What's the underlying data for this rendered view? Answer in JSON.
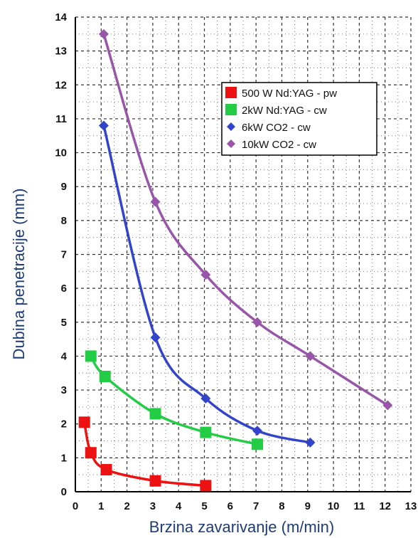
{
  "chart_data": {
    "type": "line",
    "title": "",
    "xlabel": "Brzina zavarivanje  (m/min)",
    "ylabel": "Dubina penetracije  (mm)",
    "xlim": [
      0,
      13
    ],
    "ylim": [
      0,
      14
    ],
    "xticks": [
      "0",
      "1",
      "2",
      "3",
      "4",
      "5",
      "6",
      "7",
      "8",
      "9",
      "10",
      "11",
      "12",
      "13"
    ],
    "yticks": [
      "0",
      "1",
      "2",
      "3",
      "4",
      "5",
      "6",
      "7",
      "8",
      "9",
      "10",
      "11",
      "12",
      "13",
      "14"
    ],
    "grid": true,
    "legend_position": "top-right",
    "series": [
      {
        "name": "500 W Nd:YAG - pw",
        "color": "#ee1111",
        "marker": "square",
        "x": [
          0.35,
          0.6,
          1.2,
          3.1,
          5.05
        ],
        "y": [
          2.05,
          1.15,
          0.65,
          0.32,
          0.18
        ]
      },
      {
        "name": "2kW Nd:YAG - cw",
        "color": "#22cc44",
        "marker": "square",
        "x": [
          0.6,
          1.15,
          3.1,
          5.05,
          7.05
        ],
        "y": [
          4.0,
          3.4,
          2.3,
          1.75,
          1.4
        ]
      },
      {
        "name": "6kW CO2 - cw",
        "color": "#3344cc",
        "marker": "diamond",
        "x": [
          1.1,
          3.1,
          5.05,
          7.05,
          9.1
        ],
        "y": [
          10.8,
          4.55,
          2.75,
          1.8,
          1.45
        ]
      },
      {
        "name": "10kW CO2 - cw",
        "color": "#9955aa",
        "marker": "diamond",
        "x": [
          1.1,
          3.1,
          5.05,
          7.05,
          9.1,
          12.1
        ],
        "y": [
          13.5,
          8.55,
          6.4,
          5.0,
          4.0,
          2.55
        ]
      }
    ]
  }
}
